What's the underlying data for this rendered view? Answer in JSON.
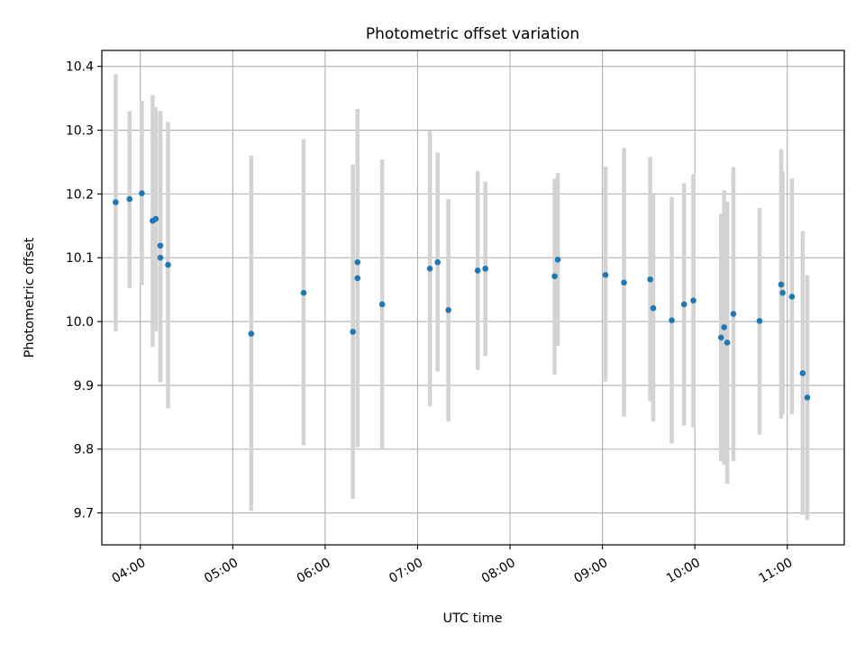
{
  "chart_data": {
    "type": "scatter",
    "title": "Photometric offset variation",
    "xlabel": "UTC time",
    "ylabel": "Photometric offset",
    "xlim": [
      "03:35",
      "11:37"
    ],
    "ylim": [
      9.65,
      10.425
    ],
    "x_ticks": [
      "04:00",
      "05:00",
      "06:00",
      "07:00",
      "08:00",
      "09:00",
      "10:00",
      "11:00"
    ],
    "y_ticks": [
      9.7,
      9.8,
      9.9,
      10.0,
      10.1,
      10.2,
      10.3,
      10.4
    ],
    "grid": true,
    "colors": {
      "point": "#1f77b4",
      "errorbar": "#d3d3d3",
      "grid": "#b0b0b0"
    },
    "points": [
      {
        "x": "03:44",
        "y": 10.187,
        "ylow": 9.985,
        "yhigh": 10.388
      },
      {
        "x": "03:53",
        "y": 10.192,
        "ylow": 10.052,
        "yhigh": 10.33
      },
      {
        "x": "04:01",
        "y": 10.201,
        "ylow": 10.057,
        "yhigh": 10.346
      },
      {
        "x": "04:08",
        "y": 10.158,
        "ylow": 9.96,
        "yhigh": 10.355
      },
      {
        "x": "04:10",
        "y": 10.161,
        "ylow": 9.985,
        "yhigh": 10.336
      },
      {
        "x": "04:13",
        "y": 10.1,
        "ylow": 9.905,
        "yhigh": 10.33
      },
      {
        "x": "04:13",
        "y": 10.119,
        "ylow": 9.905,
        "yhigh": 10.33
      },
      {
        "x": "04:18",
        "y": 10.089,
        "ylow": 9.864,
        "yhigh": 10.313
      },
      {
        "x": "05:12",
        "y": 9.981,
        "ylow": 9.703,
        "yhigh": 10.26
      },
      {
        "x": "05:46",
        "y": 10.045,
        "ylow": 9.806,
        "yhigh": 10.286
      },
      {
        "x": "06:18",
        "y": 9.984,
        "ylow": 9.722,
        "yhigh": 10.246
      },
      {
        "x": "06:21",
        "y": 10.093,
        "ylow": 9.803,
        "yhigh": 10.333
      },
      {
        "x": "06:21",
        "y": 10.068,
        "ylow": 9.803,
        "yhigh": 10.333
      },
      {
        "x": "06:37",
        "y": 10.027,
        "ylow": 9.8,
        "yhigh": 10.254
      },
      {
        "x": "07:08",
        "y": 10.083,
        "ylow": 9.867,
        "yhigh": 10.299
      },
      {
        "x": "07:13",
        "y": 10.093,
        "ylow": 9.922,
        "yhigh": 10.265
      },
      {
        "x": "07:20",
        "y": 10.018,
        "ylow": 9.843,
        "yhigh": 10.192
      },
      {
        "x": "07:39",
        "y": 10.08,
        "ylow": 9.924,
        "yhigh": 10.236
      },
      {
        "x": "07:44",
        "y": 10.083,
        "ylow": 9.946,
        "yhigh": 10.219
      },
      {
        "x": "08:29",
        "y": 10.071,
        "ylow": 9.917,
        "yhigh": 10.224
      },
      {
        "x": "08:31",
        "y": 10.097,
        "ylow": 9.962,
        "yhigh": 10.233
      },
      {
        "x": "09:02",
        "y": 10.073,
        "ylow": 9.906,
        "yhigh": 10.243
      },
      {
        "x": "09:14",
        "y": 10.061,
        "ylow": 9.851,
        "yhigh": 10.272
      },
      {
        "x": "09:31",
        "y": 10.066,
        "ylow": 9.875,
        "yhigh": 10.258
      },
      {
        "x": "09:33",
        "y": 10.021,
        "ylow": 9.843,
        "yhigh": 10.199
      },
      {
        "x": "09:45",
        "y": 10.002,
        "ylow": 9.809,
        "yhigh": 10.195
      },
      {
        "x": "09:53",
        "y": 10.027,
        "ylow": 9.837,
        "yhigh": 10.217
      },
      {
        "x": "09:59",
        "y": 10.033,
        "ylow": 9.834,
        "yhigh": 10.231
      },
      {
        "x": "10:17",
        "y": 9.975,
        "ylow": 9.781,
        "yhigh": 10.169
      },
      {
        "x": "10:19",
        "y": 9.991,
        "ylow": 9.776,
        "yhigh": 10.206
      },
      {
        "x": "10:21",
        "y": 9.967,
        "ylow": 9.746,
        "yhigh": 10.188
      },
      {
        "x": "10:25",
        "y": 10.012,
        "ylow": 9.781,
        "yhigh": 10.242
      },
      {
        "x": "10:42",
        "y": 10.001,
        "ylow": 9.823,
        "yhigh": 10.178
      },
      {
        "x": "10:56",
        "y": 10.058,
        "ylow": 9.848,
        "yhigh": 10.27
      },
      {
        "x": "10:57",
        "y": 10.045,
        "ylow": 9.855,
        "yhigh": 10.235
      },
      {
        "x": "11:03",
        "y": 10.039,
        "ylow": 9.855,
        "yhigh": 10.224
      },
      {
        "x": "11:10",
        "y": 9.919,
        "ylow": 9.697,
        "yhigh": 10.142
      },
      {
        "x": "11:13",
        "y": 9.881,
        "ylow": 9.689,
        "yhigh": 10.073
      }
    ]
  }
}
